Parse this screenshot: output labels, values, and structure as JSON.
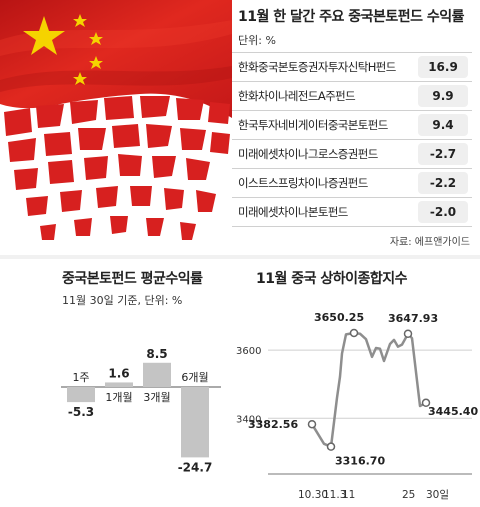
{
  "returns_table": {
    "title": "11월 한 달간 주요 중국본토펀드 수익률",
    "unit": "단위: %",
    "rows": [
      {
        "name": "한화중국본토증권자투자신탁H펀드",
        "value": "16.9"
      },
      {
        "name": "한화차이나레전드A주펀드",
        "value": "9.9"
      },
      {
        "name": "한국투자네비게이터중국본토펀드",
        "value": "9.4"
      },
      {
        "name": "미래에셋차이나그로스증권펀드",
        "value": "-2.7"
      },
      {
        "name": "이스트스프링차이나증권펀드",
        "value": "-2.2"
      },
      {
        "name": "미래에셋차이나본토펀드",
        "value": "-2.0"
      }
    ],
    "source": "자료: 에프앤가이드"
  },
  "colors": {
    "flag_red": "#d7201f",
    "star_yellow": "#f5d300",
    "bar_gray": "#c4c4c4",
    "line_gray": "#8e8e8e"
  },
  "chart_data": [
    {
      "type": "bar",
      "title": "중국본토펀드 평균수익률",
      "subtitle": "11월 30일 기준, 단위: %",
      "categories": [
        "1주",
        "1개월",
        "3개월",
        "6개월"
      ],
      "values": [
        -5.3,
        1.6,
        8.5,
        -24.7
      ],
      "value_labels": [
        "-5.3",
        "1.6",
        "8.5",
        "-24.7"
      ],
      "grid": false,
      "legend": "none"
    },
    {
      "type": "line",
      "title": "11월 중국 상하이종합지수",
      "x_tick_labels": [
        "10.30",
        "11.3",
        "11",
        "25",
        "30일"
      ],
      "y_ticks": [
        3400,
        3600
      ],
      "y_tick_labels": [
        "3400",
        "3600"
      ],
      "ylim": [
        3260,
        3700
      ],
      "grid": true,
      "points": [
        {
          "x": "10.30",
          "y": 3382.56
        },
        {
          "x": "11.2",
          "y": 3325
        },
        {
          "x": "11.3",
          "y": 3316.7
        },
        {
          "x": "11.4",
          "y": 3460
        },
        {
          "x": "11.5",
          "y": 3522
        },
        {
          "x": "11.6",
          "y": 3590
        },
        {
          "x": "11.9",
          "y": 3646
        },
        {
          "x": "11.10",
          "y": 3650.25
        },
        {
          "x": "11.11",
          "y": 3648
        },
        {
          "x": "11.12",
          "y": 3632
        },
        {
          "x": "11.13",
          "y": 3580
        },
        {
          "x": "11.16",
          "y": 3606
        },
        {
          "x": "11.17",
          "y": 3604
        },
        {
          "x": "11.18",
          "y": 3568
        },
        {
          "x": "11.19",
          "y": 3618
        },
        {
          "x": "11.20",
          "y": 3630
        },
        {
          "x": "11.23",
          "y": 3610
        },
        {
          "x": "11.24",
          "y": 3616
        },
        {
          "x": "11.25",
          "y": 3647.93
        },
        {
          "x": "11.26",
          "y": 3635
        },
        {
          "x": "11.27",
          "y": 3436
        },
        {
          "x": "11.30",
          "y": 3445.4
        }
      ],
      "annotations": [
        {
          "label": "3382.56",
          "x": "10.30"
        },
        {
          "label": "3316.70",
          "x": "11.3"
        },
        {
          "label": "3650.25",
          "x": "11.10"
        },
        {
          "label": "3647.93",
          "x": "11.25"
        },
        {
          "label": "3445.40",
          "x": "11.30"
        }
      ]
    }
  ]
}
